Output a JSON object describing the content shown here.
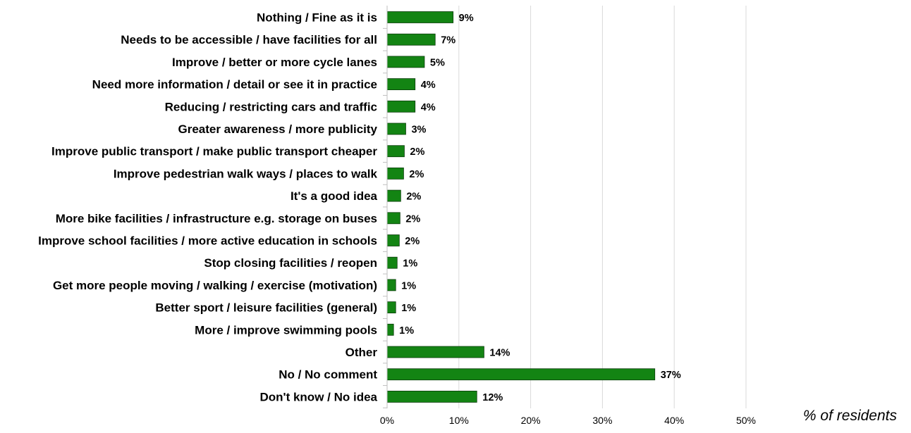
{
  "chart_data": {
    "type": "bar",
    "orientation": "horizontal",
    "categories": [
      "Nothing / Fine as it is",
      "Needs to be accessible / have facilities for all",
      "Improve / better or more cycle lanes",
      "Need more information / detail or see it in practice",
      "Reducing / restricting cars and traffic",
      "Greater awareness / more publicity",
      "Improve public transport / make public transport cheaper",
      "Improve pedestrian walk ways / places to walk",
      "It's a good idea",
      "More bike facilities / infrastructure e.g. storage on buses",
      "Improve school facilities / more active education in schools",
      "Stop closing facilities / reopen",
      "Get more people moving / walking / exercise (motivation)",
      "Better sport / leisure facilities (general)",
      "More / improve swimming pools",
      "Other",
      "No / No comment",
      "Don't know / No idea"
    ],
    "values": [
      9.2,
      6.7,
      5.2,
      3.9,
      3.9,
      2.6,
      2.4,
      2.3,
      1.9,
      1.8,
      1.7,
      1.4,
      1.2,
      1.2,
      0.9,
      13.5,
      37.3,
      12.5
    ],
    "value_labels": [
      "9%",
      "7%",
      "5%",
      "4%",
      "4%",
      "3%",
      "2%",
      "2%",
      "2%",
      "2%",
      "2%",
      "1%",
      "1%",
      "1%",
      "1%",
      "14%",
      "37%",
      "12%"
    ],
    "xlim": [
      0,
      50
    ],
    "x_ticks": [
      0,
      10,
      20,
      30,
      40,
      50
    ],
    "x_tick_labels": [
      "0%",
      "10%",
      "20%",
      "30%",
      "40%",
      "50%"
    ],
    "xlabel": "% of residents",
    "grid": "vertical",
    "bar_color": "#138413",
    "bar_border_color": "#0b3d0b",
    "grid_color": "#d9d9d9"
  }
}
